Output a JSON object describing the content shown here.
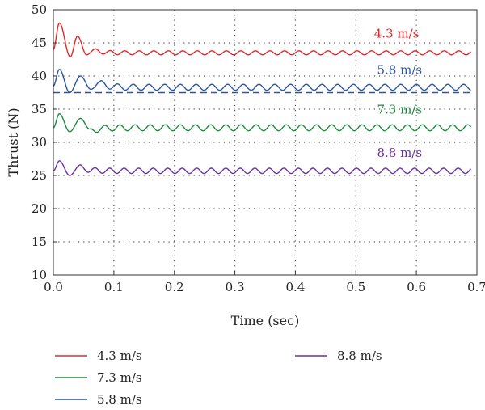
{
  "chart_data": {
    "type": "line",
    "xlabel": "Time (sec)",
    "ylabel": "Thrust (N)",
    "xlim": [
      0,
      0.7
    ],
    "ylim": [
      10,
      50
    ],
    "xticks": [
      0.0,
      0.1,
      0.2,
      0.3,
      0.4,
      0.5,
      0.6,
      0.7
    ],
    "xtick_labels": [
      "0.0",
      "0.1",
      "0.2",
      "0.3",
      "0.4",
      "0.5",
      "0.6",
      "0.7"
    ],
    "yticks": [
      10,
      15,
      20,
      25,
      30,
      35,
      40,
      45,
      50
    ],
    "ytick_labels": [
      "10",
      "15",
      "20",
      "25",
      "30",
      "35",
      "40",
      "45",
      "50"
    ],
    "grid": "dotted",
    "legend_position": "below",
    "series": [
      {
        "name": "4.3 m/s",
        "label": "4.3 m/s",
        "color": "#e8262a",
        "steady": 43.5,
        "initial": 44.0,
        "peaks": [
          [
            0.01,
            48.0
          ],
          [
            0.028,
            42.9
          ],
          [
            0.04,
            46.0
          ],
          [
            0.055,
            43.2
          ],
          [
            0.07,
            44.1
          ]
        ],
        "ripple_amplitude": 0.3,
        "ripple_period": 0.024,
        "label_x": 0.53,
        "label_y": 45.8
      },
      {
        "name": "5.8 m/s",
        "label": "5.8 m/s",
        "color": "#2a55a3",
        "steady": 38.3,
        "initial": 38.5,
        "peaks": [
          [
            0.01,
            41.0
          ],
          [
            0.027,
            37.5
          ],
          [
            0.045,
            40.0
          ],
          [
            0.062,
            38.0
          ],
          [
            0.08,
            39.3
          ]
        ],
        "ripple_amplitude": 0.45,
        "ripple_period": 0.026,
        "label_x": 0.535,
        "label_y": 40.3
      },
      {
        "name": "7.3 m/s",
        "label": "7.3 m/s",
        "color": "#1e8a3e",
        "steady": 32.2,
        "initial": 32.2,
        "peaks": [
          [
            0.01,
            34.3
          ],
          [
            0.027,
            31.6
          ],
          [
            0.045,
            33.6
          ],
          [
            0.06,
            32.0
          ]
        ],
        "ripple_amplitude": 0.45,
        "ripple_period": 0.025,
        "label_x": 0.535,
        "label_y": 34.3
      },
      {
        "name": "8.8 m/s",
        "label": "8.8 m/s",
        "color": "#6b2fa0",
        "steady": 25.7,
        "initial": 25.7,
        "peaks": [
          [
            0.01,
            27.2
          ],
          [
            0.027,
            25.0
          ],
          [
            0.045,
            26.6
          ]
        ],
        "ripple_amplitude": 0.4,
        "ripple_period": 0.024,
        "label_x": 0.535,
        "label_y": 27.8
      }
    ],
    "reference_line": {
      "y": 37.5,
      "color": "#2a55a3",
      "style": "dashed"
    },
    "legend": [
      {
        "label": "4.3 m/s",
        "color": "#e8262a"
      },
      {
        "label": "7.3 m/s",
        "color": "#1e8a3e"
      },
      {
        "label": "5.8 m/s",
        "color": "#2a55a3"
      },
      {
        "label": "8.8 m/s",
        "color": "#6b2fa0"
      }
    ]
  }
}
